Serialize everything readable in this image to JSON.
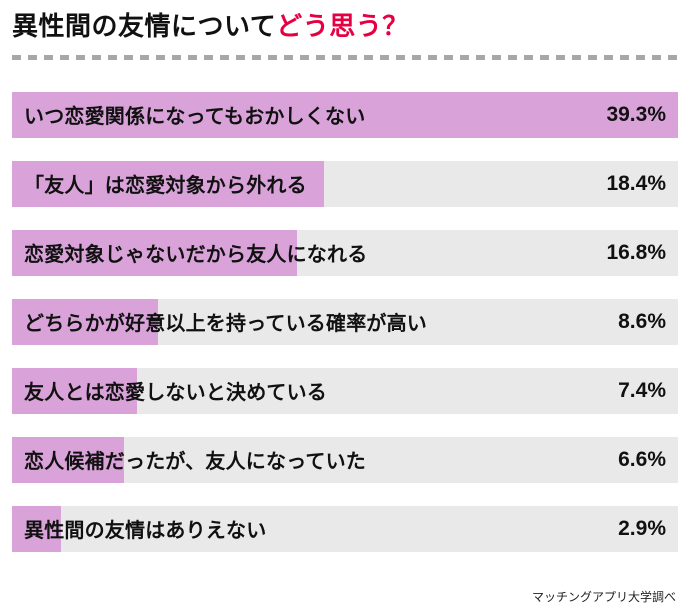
{
  "title": {
    "main": "異性間の友情について",
    "accent": "どう思う？"
  },
  "footer": {
    "source": "マッチングアプリ大学調べ"
  },
  "colors": {
    "accent": "#e60043",
    "bar_fill": "#d9a3d9",
    "bar_track": "#e9e9e9",
    "divider": "#a7a7a7"
  },
  "chart_data": {
    "type": "bar",
    "orientation": "horizontal",
    "title": "異性間の友情についてどう思う？",
    "xlabel": "",
    "ylabel": "",
    "xlim": [
      0,
      39.3
    ],
    "grid": false,
    "legend": false,
    "categories": [
      "いつ恋愛関係になってもおかしくない",
      "「友人」は恋愛対象から外れる",
      "恋愛対象じゃないだから友人になれる",
      "どちらかが好意以上を持っている確率が高い",
      "友人とは恋愛しないと決めている",
      "恋人候補だったが、友人になっていた",
      "異性間の友情はありえない"
    ],
    "values": [
      39.3,
      18.4,
      16.8,
      8.6,
      7.4,
      6.6,
      2.9
    ],
    "value_labels": [
      "39.3%",
      "18.4%",
      "16.8%",
      "8.6%",
      "7.4%",
      "6.6%",
      "2.9%"
    ],
    "max_scale": 39.3
  }
}
